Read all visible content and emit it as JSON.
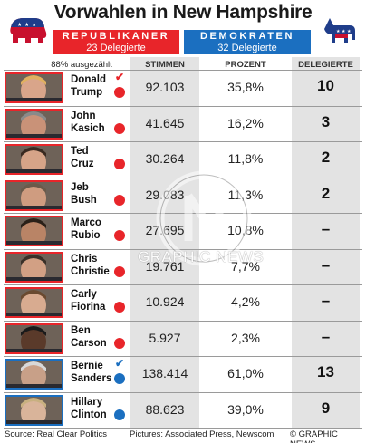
{
  "title": "Vorwahlen in New Hampshire",
  "parties": {
    "rep": {
      "name": "REPUBLIKANER",
      "delegates": "23 Delegierte",
      "color": "#e8252a",
      "logo_icon": "republican-elephant-icon"
    },
    "dem": {
      "name": "DEMOKRATEN",
      "delegates": "32 Delegierte",
      "color": "#1b6fc0",
      "logo_icon": "democratic-donkey-icon"
    }
  },
  "headers": {
    "counted": "88% ausgezählt",
    "votes": "STIMMEN",
    "percent": "PROZENT",
    "delegates": "DELEGIERTE"
  },
  "chart_data": {
    "type": "table",
    "title": "Vorwahlen in New Hampshire",
    "columns": [
      "STIMMEN",
      "PROZENT",
      "DELEGIERTE"
    ],
    "rows": [
      {
        "first": "Donald",
        "last": "Trump",
        "party": "rep",
        "winner": true,
        "votes": "92.103",
        "percent": "35,8%",
        "delegates": "10"
      },
      {
        "first": "John",
        "last": "Kasich",
        "party": "rep",
        "winner": false,
        "votes": "41.645",
        "percent": "16,2%",
        "delegates": "3"
      },
      {
        "first": "Ted",
        "last": "Cruz",
        "party": "rep",
        "winner": false,
        "votes": "30.264",
        "percent": "11,8%",
        "delegates": "2"
      },
      {
        "first": "Jeb",
        "last": "Bush",
        "party": "rep",
        "winner": false,
        "votes": "29.083",
        "percent": "11,3%",
        "delegates": "2"
      },
      {
        "first": "Marco",
        "last": "Rubio",
        "party": "rep",
        "winner": false,
        "votes": "27.695",
        "percent": "10,8%",
        "delegates": "–"
      },
      {
        "first": "Chris",
        "last": "Christie",
        "party": "rep",
        "winner": false,
        "votes": "19.761",
        "percent": "7,7%",
        "delegates": "–"
      },
      {
        "first": "Carly",
        "last": "Fiorina",
        "party": "rep",
        "winner": false,
        "votes": "10.924",
        "percent": "4,2%",
        "delegates": "–"
      },
      {
        "first": "Ben",
        "last": "Carson",
        "party": "rep",
        "winner": false,
        "votes": "5.927",
        "percent": "2,3%",
        "delegates": "–"
      },
      {
        "first": "Bernie",
        "last": "Sanders",
        "party": "dem",
        "winner": true,
        "votes": "138.414",
        "percent": "61,0%",
        "delegates": "13"
      },
      {
        "first": "Hillary",
        "last": "Clinton",
        "party": "dem",
        "winner": false,
        "votes": "88.623",
        "percent": "39,0%",
        "delegates": "9"
      }
    ]
  },
  "watermark": {
    "text": "GRAPHIC NEWS"
  },
  "footer": {
    "source": "Source: Real Clear Politics",
    "pictures": "Pictures: Associated Press, Newscom",
    "copyright": "© GRAPHIC NEWS"
  }
}
